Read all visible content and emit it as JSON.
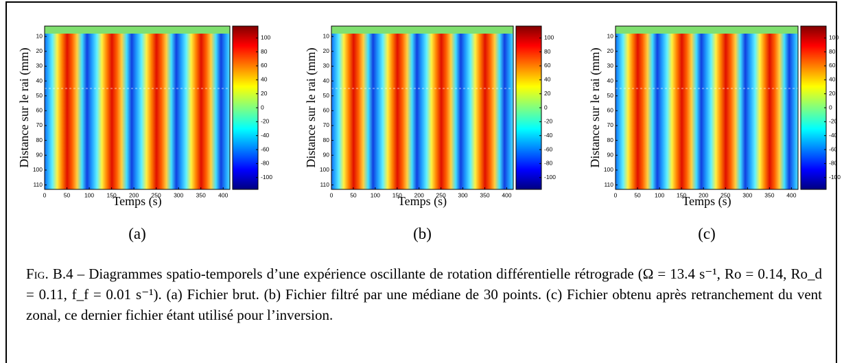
{
  "figure": {
    "axes": {
      "xticks": [
        0,
        50,
        100,
        150,
        200,
        250,
        300,
        350,
        400
      ],
      "xlim": [
        0,
        415
      ],
      "yticks": [
        10,
        20,
        30,
        40,
        50,
        60,
        70,
        80,
        90,
        100,
        110
      ],
      "ylim": [
        3,
        113
      ],
      "cticks": [
        100,
        80,
        60,
        40,
        20,
        0,
        -20,
        -40,
        -60,
        -80,
        -100
      ],
      "clim": [
        -117,
        117
      ],
      "xlabel": "Temps (s)",
      "ylabel": "Distance sur le rai (mm)"
    },
    "panels": [
      {
        "label": "(a)"
      },
      {
        "label": "(b)"
      },
      {
        "label": "(c)"
      }
    ],
    "caption": {
      "label": "Fig. B.4",
      "text": " – Diagrammes spatio-temporels d’une expérience oscillante de rotation différentielle rétrograde (Ω = 13.4 s⁻¹, Ro = 0.14, Ro_d = 0.11, f_f = 0.01 s⁻¹). (a) Fichier brut. (b) Fichier filtré par une médiane de 30 points. (c) Fichier obtenu après retranchement du vent zonal, ce dernier fichier étant utilisé pour l’inversion."
    }
  }
}
